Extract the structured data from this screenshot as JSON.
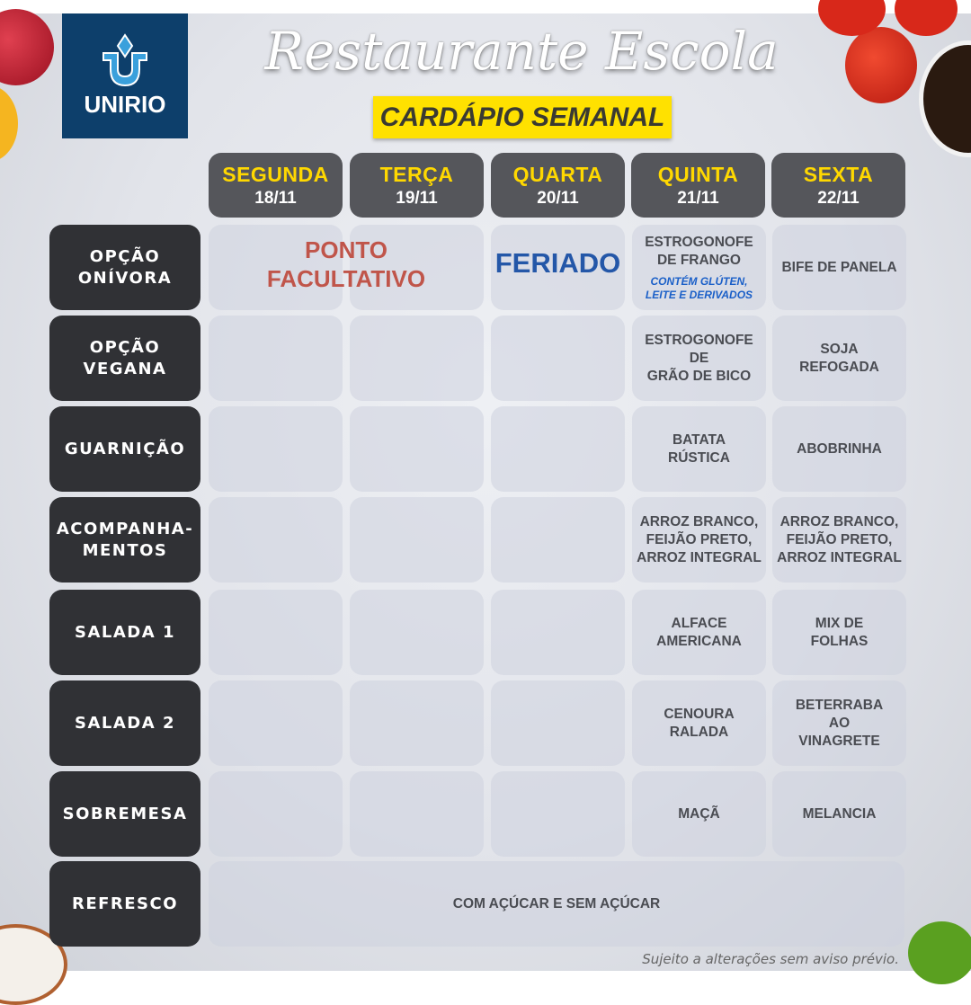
{
  "logo": {
    "text": "UNIRIO"
  },
  "header": {
    "title": "Restaurante Escola",
    "subtitle": "CARDÁPIO SEMANAL"
  },
  "days": [
    {
      "name": "SEGUNDA",
      "date": "18/11"
    },
    {
      "name": "TERÇA",
      "date": "19/11"
    },
    {
      "name": "QUARTA",
      "date": "20/11"
    },
    {
      "name": "QUINTA",
      "date": "21/11"
    },
    {
      "name": "SEXTA",
      "date": "22/11"
    }
  ],
  "notices": {
    "ponto": "PONTO\nFACULTATIVO",
    "feriado": "FERIADO"
  },
  "rows": [
    {
      "label": "OPÇÃO\nONÍVORA",
      "quinta": "ESTROGONOFE\nDE FRANGO",
      "quinta_note": "CONTÉM GLÚTEN,\nLEITE E DERIVADOS",
      "sexta": "BIFE DE PANELA"
    },
    {
      "label": "OPÇÃO\nVEGANA",
      "quinta": "ESTROGONOFE\nDE\nGRÃO DE BICO",
      "sexta": "SOJA\nREFOGADA"
    },
    {
      "label": "GUARNIÇÃO",
      "quinta": "BATATA\nRÚSTICA",
      "sexta": "ABOBRINHA"
    },
    {
      "label": "ACOMPANHA-\nMENTOS",
      "quinta": "ARROZ BRANCO,\nFEIJÃO PRETO,\nARROZ INTEGRAL",
      "sexta": "ARROZ BRANCO,\nFEIJÃO PRETO,\nARROZ INTEGRAL"
    },
    {
      "label": "SALADA 1",
      "quinta": "ALFACE\nAMERICANA",
      "sexta": "MIX DE\nFOLHAS"
    },
    {
      "label": "SALADA 2",
      "quinta": "CENOURA\nRALADA",
      "sexta": "BETERRABA\nAO\nVINAGRETE"
    },
    {
      "label": "SOBREMESA",
      "quinta": "MAÇÃ",
      "sexta": "MELANCIA"
    },
    {
      "label": "REFRESCO",
      "all": "COM AÇÚCAR E SEM AÇÚCAR"
    }
  ],
  "footer": "Sujeito a alterações sem aviso prévio.",
  "colors": {
    "logo_bg": "#0d3f6b",
    "subtitle_bg": "#ffe100",
    "day_name": "#ffd800",
    "label_bg": "#303135",
    "ponto": "#c0554a",
    "feriado": "#2457a8",
    "note": "#1a5fc8"
  }
}
